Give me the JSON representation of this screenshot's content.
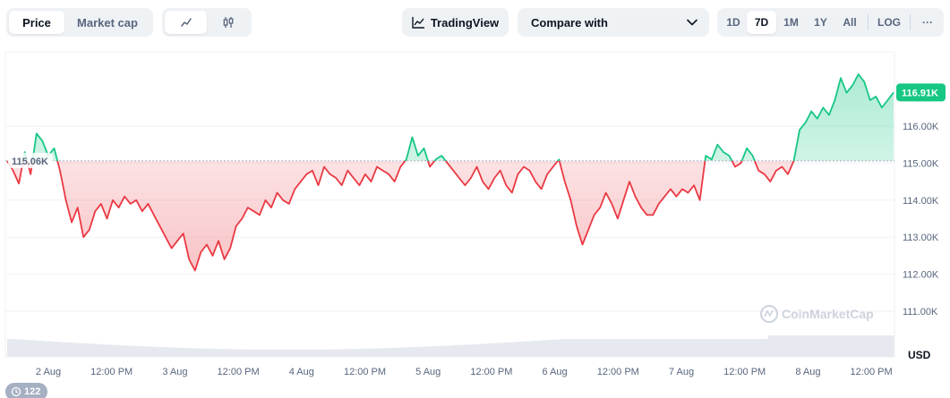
{
  "toolbar": {
    "metric_tabs": [
      "Price",
      "Market cap"
    ],
    "active_metric": "Price",
    "chart_types": [
      "line-chart-icon",
      "candlestick-icon"
    ],
    "tradingview_label": "TradingView",
    "compare_label": "Compare with",
    "ranges": [
      "1D",
      "7D",
      "1M",
      "1Y",
      "All"
    ],
    "active_range": "7D",
    "log_label": "LOG",
    "more_label": "···"
  },
  "watermark": "CoinMarketCap",
  "history_badge": "122",
  "colors": {
    "up": "#16c784",
    "down": "#ea3943",
    "grid": "#eff2f5",
    "volume": "#e6e9ef"
  },
  "chart_data": {
    "type": "area",
    "ylabel_unit": "USD",
    "ylim": [
      110500,
      117500
    ],
    "yticks": [
      111000,
      112000,
      113000,
      114000,
      115000,
      116000
    ],
    "ytick_labels": [
      "111.00K",
      "112.00K",
      "113.00K",
      "114.00K",
      "115.00K",
      "116.00K"
    ],
    "reference_price": 115060,
    "reference_label": "115.06K",
    "current_price": 116910,
    "current_label": "116.91K",
    "xticks": [
      "2 Aug",
      "12:00 PM",
      "3 Aug",
      "12:00 PM",
      "4 Aug",
      "12:00 PM",
      "5 Aug",
      "12:00 PM",
      "6 Aug",
      "12:00 PM",
      "7 Aug",
      "12:00 PM",
      "8 Aug",
      "12:00 PM"
    ],
    "series": [
      {
        "values": [
          115060,
          114800,
          114450,
          115300,
          114700,
          115800,
          115600,
          115200,
          115400,
          114800,
          114000,
          113400,
          113800,
          113000,
          113200,
          113700,
          113900,
          113500,
          114000,
          113800,
          114100,
          113900,
          114000,
          113700,
          113900,
          113600,
          113300,
          113000,
          112700,
          112900,
          113100,
          112400,
          112100,
          112600,
          112800,
          112500,
          112900,
          112400,
          112700,
          113300,
          113500,
          113800,
          113700,
          113600,
          114000,
          113800,
          114200,
          114000,
          113900,
          114300,
          114500,
          114700,
          114800,
          114400,
          114900,
          114700,
          114600,
          114400,
          114800,
          114600,
          114400,
          114700,
          114500,
          114900,
          114800,
          114700,
          114500,
          114900,
          115100,
          115700,
          115200,
          115400,
          114900,
          115100,
          115200,
          115000,
          114800,
          114600,
          114400,
          114600,
          114900,
          114500,
          114300,
          114600,
          114800,
          114400,
          114200,
          114700,
          114900,
          114800,
          114500,
          114300,
          114700,
          114900,
          115100,
          114500,
          114000,
          113300,
          112800,
          113200,
          113600,
          113800,
          114200,
          113900,
          113500,
          114000,
          114500,
          114100,
          113800,
          113600,
          113600,
          113900,
          114100,
          114300,
          114100,
          114300,
          114200,
          114400,
          114000,
          115200,
          115100,
          115500,
          115300,
          115200,
          114900,
          115000,
          115400,
          115200,
          114800,
          114700,
          114500,
          114800,
          114900,
          114700,
          115060,
          115900,
          116100,
          116400,
          116200,
          116500,
          116300,
          116700,
          117300,
          116900,
          117100,
          117400,
          117200,
          116700,
          116800,
          116500,
          116700,
          116910
        ]
      }
    ],
    "volume_trend": "low, flat",
    "grid": true,
    "line_color_above_reference": "#16c784",
    "line_color_below_reference": "#ea3943"
  }
}
